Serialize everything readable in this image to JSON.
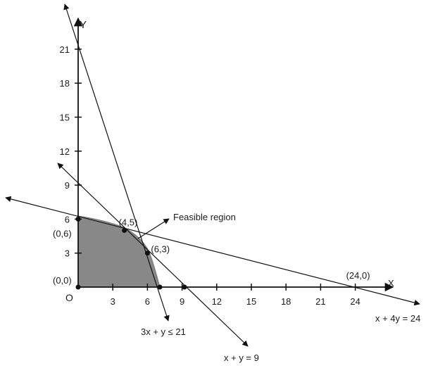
{
  "axes": {
    "x_label": "X",
    "y_label": "Y",
    "origin_label": "O",
    "x_ticks": [
      "3",
      "6",
      "9",
      "12",
      "15",
      "18",
      "21",
      "24"
    ],
    "y_ticks": [
      "3",
      "6",
      "9",
      "12",
      "15",
      "18",
      "21"
    ]
  },
  "points": [
    {
      "label": "(0,0)",
      "x": 0,
      "y": 0
    },
    {
      "label": "(0,6)",
      "x": 0,
      "y": 6
    },
    {
      "label": "(4,5)",
      "x": 4,
      "y": 5
    },
    {
      "label": "(6,3)",
      "x": 6,
      "y": 3
    },
    {
      "label": "(24,0)",
      "x": 24,
      "y": 0
    }
  ],
  "region_label": "Feasible region",
  "lines": [
    {
      "label": "x + 4y = 24"
    },
    {
      "label": "3x + y ≤ 21"
    },
    {
      "label": "x + y = 9"
    }
  ],
  "colors": {
    "region": "#888888",
    "line": "#111111"
  }
}
